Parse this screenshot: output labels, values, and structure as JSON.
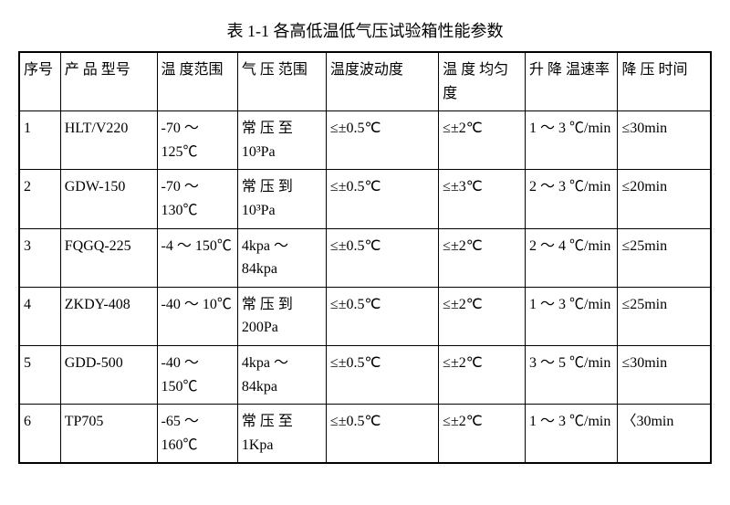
{
  "title": "表 1-1 各高低温低气压试验箱性能参数",
  "columns": {
    "seq": "序号",
    "model": "产 品 型号",
    "tempRange": "温 度范围",
    "pressureRange": "气 压 范围",
    "tempFluctuation": "温度波动度",
    "tempUniformity": "温 度 均匀度",
    "heatCoolRate": "升 降 温速率",
    "depressTime": "降 压 时间"
  },
  "rows": [
    {
      "seq": "1",
      "model": "HLT/V220",
      "tempRange": "-70 ～ 125℃",
      "pressureRange": "常 压 至 10³Pa",
      "tempFluctuation": "≤±0.5℃",
      "tempUniformity": "≤±2℃",
      "heatCoolRate": "1 ～ 3 ℃/min",
      "depressTime": "≤30min"
    },
    {
      "seq": "2",
      "model": "GDW-150",
      "tempRange": "-70 ～ 130℃",
      "pressureRange": "常 压 到 10³Pa",
      "tempFluctuation": "≤±0.5℃",
      "tempUniformity": "≤±3℃",
      "heatCoolRate": "2 ～ 3 ℃/min",
      "depressTime": "≤20min"
    },
    {
      "seq": "3",
      "model": "FQGQ-225",
      "tempRange": "-4 ～ 150℃",
      "pressureRange": "4kpa ～ 84kpa",
      "tempFluctuation": "≤±0.5℃",
      "tempUniformity": "≤±2℃",
      "heatCoolRate": "2 ～ 4 ℃/min",
      "depressTime": "≤25min"
    },
    {
      "seq": "4",
      "model": "ZKDY-408",
      "tempRange": "-40 ～ 10℃",
      "pressureRange": "常 压 到 200Pa",
      "tempFluctuation": "≤±0.5℃",
      "tempUniformity": "≤±2℃",
      "heatCoolRate": "1 ～ 3 ℃/min",
      "depressTime": "≤25min"
    },
    {
      "seq": "5",
      "model": "GDD-500",
      "tempRange": "-40 ～ 150℃",
      "pressureRange": "4kpa ～ 84kpa",
      "tempFluctuation": "≤±0.5℃",
      "tempUniformity": "≤±2℃",
      "heatCoolRate": "3 ～ 5 ℃/min",
      "depressTime": "≤30min"
    },
    {
      "seq": "6",
      "model": "TP705",
      "tempRange": "-65 ～ 160℃",
      "pressureRange": "常 压 至 1Kpa",
      "tempFluctuation": "≤±0.5℃",
      "tempUniformity": "≤±2℃",
      "heatCoolRate": "1 ～ 3 ℃/min",
      "depressTime": "〈30min"
    }
  ]
}
